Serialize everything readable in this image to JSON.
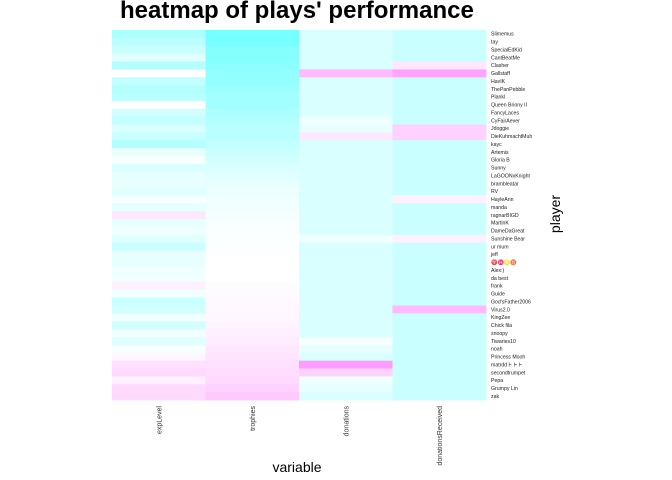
{
  "chart_data": {
    "type": "heatmap",
    "title": "heatmap of plays' performance",
    "xlabel": "variable",
    "ylabel": "player",
    "columns": [
      "expLevel",
      "trophies",
      "donations",
      "donationsReceived"
    ],
    "rows": [
      "Slimemus",
      "tay",
      "SpecialEdKid",
      "CantBeatMe",
      "Clasher",
      "Gallstaff",
      "HavIK",
      "ThePanPebble",
      "Plankl",
      "Queen Briony II",
      "FancyLaces",
      "CyFairAever",
      "Jdoggie",
      "DieKuhmachtMuh",
      "kayc",
      "Artemis",
      "Gloria B",
      "Sunny",
      "LaGOONxKnight",
      "brambleatar",
      "RV",
      "HayleAnn",
      "manda",
      "ragnarBIGD",
      "MartinK",
      "DameDaGreat",
      "Sunshine Bear",
      "ur mum",
      "jeff",
      "♈♓♌♉",
      "Alex:)",
      "da best",
      "frank",
      "Guide",
      "God'sFather2006",
      "Virus2.0",
      "KingZee",
      "Chick fila",
      "snoopy",
      "Tiwaries10",
      "noah",
      "Princess Mooh",
      "matrddトトト",
      "secondtrumpet",
      "Pepa",
      "Grumpy Lin",
      "zak"
    ],
    "values": [
      [
        0.55,
        0.9,
        0.25,
        0.35
      ],
      [
        0.45,
        0.9,
        0.25,
        0.35
      ],
      [
        0.35,
        0.8,
        0.25,
        0.35
      ],
      [
        0.2,
        0.8,
        0.25,
        0.35
      ],
      [
        0.5,
        0.75,
        0.25,
        -0.15
      ],
      [
        0.0,
        0.7,
        -0.45,
        -0.6
      ],
      [
        0.4,
        0.7,
        0.25,
        0.35
      ],
      [
        0.5,
        0.65,
        0.25,
        0.35
      ],
      [
        0.45,
        0.6,
        0.25,
        0.35
      ],
      [
        0.0,
        0.6,
        0.25,
        0.35
      ],
      [
        0.3,
        0.55,
        0.25,
        0.35
      ],
      [
        0.4,
        0.5,
        0.1,
        0.35
      ],
      [
        0.25,
        0.45,
        0.15,
        -0.3
      ],
      [
        0.35,
        0.45,
        -0.15,
        -0.3
      ],
      [
        0.5,
        0.4,
        0.25,
        0.35
      ],
      [
        0.15,
        0.35,
        0.25,
        0.35
      ],
      [
        0.05,
        0.3,
        0.25,
        0.35
      ],
      [
        0.25,
        0.25,
        0.25,
        0.35
      ],
      [
        0.15,
        0.2,
        0.25,
        0.35
      ],
      [
        0.15,
        0.15,
        0.25,
        0.35
      ],
      [
        0.2,
        0.12,
        0.25,
        0.35
      ],
      [
        0.05,
        0.1,
        0.25,
        -0.1
      ],
      [
        0.15,
        0.08,
        0.25,
        0.35
      ],
      [
        -0.15,
        0.06,
        0.25,
        0.35
      ],
      [
        0.15,
        0.05,
        0.25,
        0.35
      ],
      [
        0.1,
        0.04,
        0.25,
        0.35
      ],
      [
        0.2,
        0.03,
        0.1,
        -0.1
      ],
      [
        0.35,
        0.02,
        0.25,
        0.35
      ],
      [
        0.15,
        0.01,
        0.25,
        0.35
      ],
      [
        0.15,
        0.0,
        0.25,
        0.35
      ],
      [
        0.1,
        0.0,
        0.25,
        0.35
      ],
      [
        0.1,
        0.0,
        0.25,
        0.35
      ],
      [
        -0.1,
        -0.02,
        0.25,
        0.35
      ],
      [
        0.1,
        -0.03,
        0.25,
        0.35
      ],
      [
        0.35,
        -0.04,
        0.25,
        0.35
      ],
      [
        0.3,
        -0.05,
        0.25,
        -0.45
      ],
      [
        0.1,
        -0.06,
        0.25,
        0.35
      ],
      [
        0.3,
        -0.08,
        0.25,
        0.35
      ],
      [
        0.1,
        -0.1,
        0.25,
        0.35
      ],
      [
        0.2,
        -0.12,
        0.05,
        0.35
      ],
      [
        0.05,
        -0.15,
        0.15,
        0.35
      ],
      [
        -0.05,
        -0.18,
        0.25,
        0.35
      ],
      [
        -0.2,
        -0.2,
        -0.65,
        0.35
      ],
      [
        -0.25,
        -0.22,
        -0.3,
        0.35
      ],
      [
        -0.1,
        -0.25,
        0.1,
        0.35
      ],
      [
        -0.25,
        -0.3,
        0.15,
        0.35
      ],
      [
        -0.25,
        -0.35,
        0.25,
        0.35
      ]
    ],
    "colors": {
      "high": "#66ffff",
      "mid": "#ffffff",
      "low": "#ff66ff"
    },
    "legend": "none",
    "grid": false
  }
}
